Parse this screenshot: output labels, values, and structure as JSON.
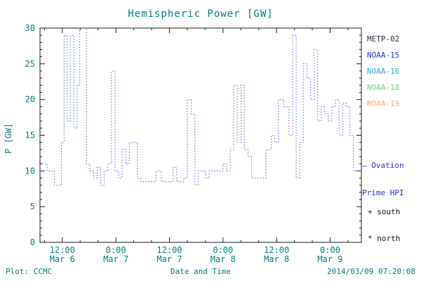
{
  "title": "Hemispheric Power [GW]",
  "legend": {
    "satellites": [
      {
        "label": "METP-02",
        "color": "#333344"
      },
      {
        "label": "NOAA-15",
        "color": "#2233cc"
      },
      {
        "label": "NOAA-16",
        "color": "#22aadd"
      },
      {
        "label": "NOAA-18",
        "color": "#77cc88"
      },
      {
        "label": "NOAA-19",
        "color": "#ffaa77"
      }
    ],
    "ovation_line1": "– Ovation",
    "ovation_line2": "Prime HPI",
    "south_marker": "+ south",
    "north_marker": "* north"
  },
  "footer": {
    "credit": "Plot: CCMC",
    "xlabel": "Date and Time",
    "timestamp": "2014/03/09 07:20:08"
  },
  "chart_data": {
    "type": "line",
    "title": "Hemispheric Power [GW]",
    "xlabel": "Date and Time",
    "ylabel": "P [GW]",
    "line_style": "dotted step",
    "line_color": "#4a5add",
    "frame_color": "#1a1a1a",
    "text_color": "#008080",
    "ylim": [
      0,
      30
    ],
    "yticks": [
      0,
      5,
      10,
      15,
      20,
      25,
      30
    ],
    "xlim_hours": [
      7,
      79
    ],
    "xticks": [
      {
        "hour": 12,
        "time": "12:00",
        "date": "Mar 6"
      },
      {
        "hour": 24,
        "time": "0:00",
        "date": "Mar 7"
      },
      {
        "hour": 36,
        "time": "12:00",
        "date": "Mar 7"
      },
      {
        "hour": 48,
        "time": "0:00",
        "date": "Mar 8"
      },
      {
        "hour": 60,
        "time": "12:00",
        "date": "Mar 8"
      },
      {
        "hour": 72,
        "time": "0:00",
        "date": "Mar 9"
      }
    ],
    "x_minor_step_hours": 4,
    "hours": [
      7.5,
      8.6,
      10.2,
      11.8,
      12.4,
      13.1,
      13.8,
      14.6,
      15.3,
      15.9,
      17.4,
      18.2,
      19.0,
      19.8,
      20.6,
      21.4,
      22.2,
      23.0,
      23.8,
      24.6,
      25.4,
      26.2,
      27.0,
      28.2,
      28.8,
      29.6,
      31.5,
      33.0,
      34.2,
      36.0,
      36.8,
      37.6,
      39.2,
      40.0,
      40.9,
      41.7,
      42.5,
      43.3,
      44.1,
      44.9,
      45.7,
      47.0,
      48.0,
      48.8,
      49.6,
      50.4,
      51.2,
      52.0,
      52.8,
      53.6,
      54.4,
      56.8,
      57.6,
      58.8,
      59.6,
      60.4,
      61.6,
      62.8,
      63.6,
      64.4,
      65.2,
      66.0,
      66.8,
      67.6,
      68.4,
      69.2,
      70.0,
      70.8,
      71.6,
      72.4,
      73.2,
      74.0,
      74.8,
      75.6,
      76.4,
      77.2,
      79.0
    ],
    "power_gw": [
      11,
      10,
      8,
      14,
      29,
      17,
      29,
      16,
      22,
      30,
      11,
      10,
      9,
      10.5,
      8,
      10,
      11,
      24,
      10,
      9,
      13,
      11,
      14,
      14,
      9,
      8.5,
      8.5,
      10,
      8.5,
      8.5,
      10.5,
      8.5,
      9,
      20,
      18,
      8,
      10,
      10,
      9,
      10,
      10,
      10,
      11,
      10,
      13,
      22,
      14,
      22,
      13,
      12,
      9,
      9,
      13,
      15,
      14,
      20,
      19,
      15,
      29,
      9,
      14,
      25,
      23,
      20,
      27,
      17,
      19,
      18,
      17,
      19,
      20,
      15,
      19.5,
      19,
      15,
      10,
      10
    ]
  }
}
